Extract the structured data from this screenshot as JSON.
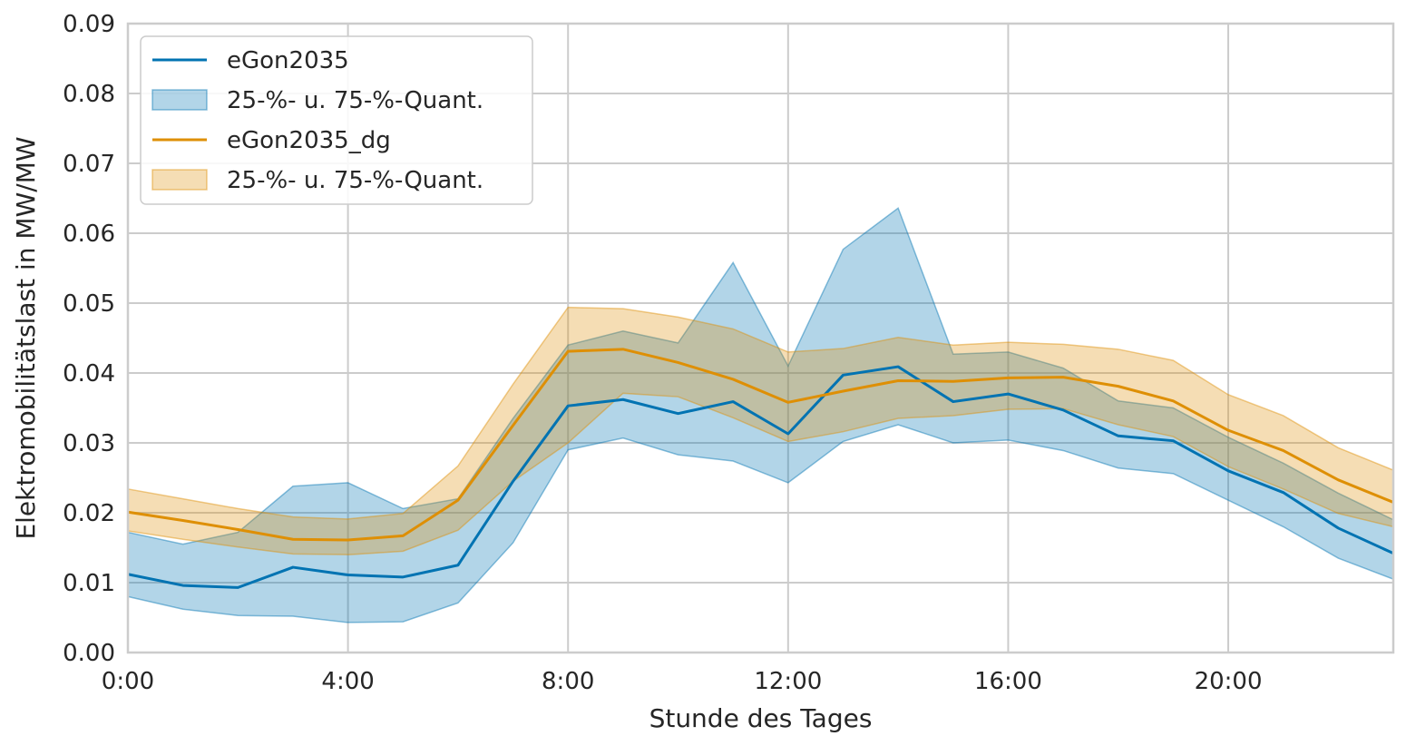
{
  "chart_data": {
    "type": "line",
    "xlabel": "Stunde des Tages",
    "ylabel": "Elektromobilitätslast in MW/MW",
    "xlim": [
      0,
      23
    ],
    "ylim": [
      0,
      0.09
    ],
    "x_ticks": [
      0,
      4,
      8,
      12,
      16,
      20
    ],
    "x_tick_labels": [
      "0:00",
      "4:00",
      "8:00",
      "12:00",
      "16:00",
      "20:00"
    ],
    "y_ticks": [
      0.0,
      0.01,
      0.02,
      0.03,
      0.04,
      0.05,
      0.06,
      0.07,
      0.08,
      0.09
    ],
    "y_tick_labels": [
      "0.00",
      "0.01",
      "0.02",
      "0.03",
      "0.04",
      "0.05",
      "0.06",
      "0.07",
      "0.08",
      "0.09"
    ],
    "grid": true,
    "legend_position": "top-left",
    "x": [
      0,
      1,
      2,
      3,
      4,
      5,
      6,
      7,
      8,
      9,
      10,
      11,
      12,
      13,
      14,
      15,
      16,
      17,
      18,
      19,
      20,
      21,
      22,
      23
    ],
    "series": [
      {
        "name": "eGon2035",
        "color": "#0173b2",
        "values": [
          0.0112,
          0.0096,
          0.0093,
          0.0122,
          0.0111,
          0.0108,
          0.0125,
          0.0245,
          0.0353,
          0.0362,
          0.0342,
          0.0359,
          0.0313,
          0.0397,
          0.0409,
          0.0359,
          0.037,
          0.0347,
          0.031,
          0.0303,
          0.026,
          0.0229,
          0.0178,
          0.0142
        ],
        "band_name": "25-%- u. 75-%-Quant.",
        "band_color": "#0173b2",
        "band_lower": [
          0.008,
          0.0062,
          0.0053,
          0.0052,
          0.0043,
          0.0044,
          0.0071,
          0.0157,
          0.029,
          0.0307,
          0.0283,
          0.0274,
          0.0243,
          0.0302,
          0.0326,
          0.03,
          0.0304,
          0.0289,
          0.0264,
          0.0256,
          0.0218,
          0.018,
          0.0135,
          0.0105
        ],
        "band_upper": [
          0.0172,
          0.0155,
          0.0172,
          0.0238,
          0.0243,
          0.0206,
          0.022,
          0.0335,
          0.044,
          0.046,
          0.0443,
          0.0558,
          0.041,
          0.0577,
          0.0636,
          0.0427,
          0.043,
          0.0407,
          0.036,
          0.035,
          0.0308,
          0.0271,
          0.0228,
          0.019
        ]
      },
      {
        "name": "eGon2035_dg",
        "color": "#de8f05",
        "values": [
          0.0201,
          0.0189,
          0.0176,
          0.0162,
          0.0161,
          0.0167,
          0.0218,
          0.0325,
          0.0431,
          0.0434,
          0.0415,
          0.0391,
          0.0358,
          0.0374,
          0.0389,
          0.0388,
          0.0393,
          0.0394,
          0.0381,
          0.036,
          0.0318,
          0.0289,
          0.0247,
          0.0215
        ],
        "band_name": "25-%- u. 75-%-Quant.",
        "band_color": "#de8f05",
        "band_lower": [
          0.0174,
          0.0162,
          0.0151,
          0.0141,
          0.014,
          0.0145,
          0.0175,
          0.0245,
          0.03,
          0.0371,
          0.0366,
          0.0336,
          0.0302,
          0.0316,
          0.0335,
          0.0339,
          0.0348,
          0.0349,
          0.0326,
          0.0309,
          0.0266,
          0.0234,
          0.0199,
          0.018
        ],
        "band_upper": [
          0.0234,
          0.022,
          0.0206,
          0.0194,
          0.0191,
          0.0199,
          0.0267,
          0.0384,
          0.0494,
          0.0492,
          0.048,
          0.0463,
          0.043,
          0.0435,
          0.0451,
          0.044,
          0.0444,
          0.0441,
          0.0434,
          0.0418,
          0.0369,
          0.0339,
          0.0293,
          0.0261
        ]
      }
    ]
  }
}
